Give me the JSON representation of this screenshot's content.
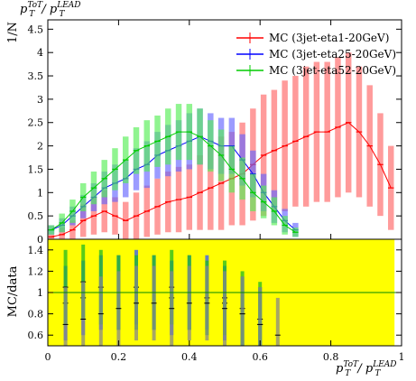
{
  "chart_data": [
    {
      "type": "line",
      "panel": "main",
      "title": "p_T^{ToT} / p_T^{LEAD}",
      "title_parts": {
        "base": "p",
        "sub": "T",
        "sup1": "ToT",
        "sep": " / ",
        "base2": "p",
        "sub2": "T",
        "sup2": "LEAD"
      },
      "ylabel": "1/N",
      "xlim": [
        0,
        1
      ],
      "ylim": [
        0,
        4.7
      ],
      "x_ticks": [
        0,
        0.2,
        0.4,
        0.6,
        0.8,
        1
      ],
      "y_ticks": [
        "0",
        "0.5",
        "1",
        "1.5",
        "2",
        "2.5",
        "3",
        "3.5",
        "4",
        "4.5"
      ],
      "y_tick_values": [
        0,
        0.5,
        1,
        1.5,
        2,
        2.5,
        3,
        3.5,
        4,
        4.5
      ],
      "legend_position": "top-right",
      "series": [
        {
          "name": "MC (3jet-eta1-20GeV)",
          "color": "#ff0000",
          "band_color": "#ff6666",
          "x": [
            0.01,
            0.04,
            0.07,
            0.1,
            0.13,
            0.16,
            0.19,
            0.22,
            0.25,
            0.28,
            0.31,
            0.34,
            0.37,
            0.4,
            0.43,
            0.46,
            0.49,
            0.52,
            0.55,
            0.58,
            0.61,
            0.64,
            0.67,
            0.7,
            0.73,
            0.76,
            0.79,
            0.82,
            0.85,
            0.88,
            0.91,
            0.94,
            0.97
          ],
          "y": [
            0.05,
            0.1,
            0.2,
            0.4,
            0.5,
            0.6,
            0.5,
            0.4,
            0.5,
            0.6,
            0.7,
            0.8,
            0.85,
            0.9,
            1.0,
            1.1,
            1.2,
            1.3,
            1.4,
            1.6,
            1.8,
            1.9,
            2.0,
            2.1,
            2.2,
            2.3,
            2.3,
            2.4,
            2.5,
            2.3,
            2.0,
            1.6,
            1.1
          ],
          "err": [
            0.05,
            0.15,
            0.2,
            0.35,
            0.4,
            0.45,
            0.4,
            0.4,
            0.5,
            0.55,
            0.6,
            0.65,
            0.7,
            0.7,
            0.8,
            0.9,
            1.0,
            1.0,
            1.1,
            1.2,
            1.3,
            1.3,
            1.4,
            1.4,
            1.5,
            1.5,
            1.5,
            1.5,
            1.5,
            1.4,
            1.3,
            1.1,
            0.9
          ]
        },
        {
          "name": "MC (3jet-eta25-20GeV)",
          "color": "#0000ff",
          "band_color": "#6666ff",
          "x": [
            0.01,
            0.04,
            0.07,
            0.1,
            0.13,
            0.16,
            0.19,
            0.22,
            0.25,
            0.28,
            0.31,
            0.34,
            0.37,
            0.4,
            0.43,
            0.46,
            0.49,
            0.52,
            0.55,
            0.58,
            0.61,
            0.64,
            0.67,
            0.7
          ],
          "y": [
            0.2,
            0.3,
            0.5,
            0.7,
            0.9,
            1.1,
            1.2,
            1.3,
            1.5,
            1.6,
            1.8,
            1.9,
            2.0,
            2.1,
            2.2,
            2.1,
            2.0,
            2.0,
            1.7,
            1.4,
            1.0,
            0.7,
            0.4,
            0.2
          ],
          "err": [
            0.1,
            0.15,
            0.2,
            0.25,
            0.3,
            0.35,
            0.4,
            0.4,
            0.45,
            0.5,
            0.5,
            0.55,
            0.55,
            0.6,
            0.6,
            0.6,
            0.6,
            0.6,
            0.55,
            0.5,
            0.4,
            0.35,
            0.25,
            0.15
          ]
        },
        {
          "name": "MC (3jet-eta52-20GeV)",
          "color": "#00cc00",
          "band_color": "#55ee55",
          "x": [
            0.01,
            0.04,
            0.07,
            0.1,
            0.13,
            0.16,
            0.19,
            0.22,
            0.25,
            0.28,
            0.31,
            0.34,
            0.37,
            0.4,
            0.43,
            0.46,
            0.49,
            0.52,
            0.55,
            0.58,
            0.61,
            0.64,
            0.67,
            0.7
          ],
          "y": [
            0.2,
            0.35,
            0.6,
            0.9,
            1.1,
            1.3,
            1.5,
            1.7,
            1.9,
            2.0,
            2.1,
            2.2,
            2.3,
            2.3,
            2.2,
            2.0,
            1.8,
            1.5,
            1.3,
            1.0,
            0.8,
            0.6,
            0.3,
            0.15
          ],
          "err": [
            0.1,
            0.2,
            0.25,
            0.3,
            0.35,
            0.4,
            0.45,
            0.5,
            0.5,
            0.55,
            0.55,
            0.6,
            0.6,
            0.6,
            0.6,
            0.55,
            0.55,
            0.5,
            0.45,
            0.4,
            0.35,
            0.3,
            0.2,
            0.1
          ]
        }
      ]
    },
    {
      "type": "line",
      "panel": "ratio",
      "ylabel": "MC/data",
      "xlabel": "p_T^{ToT} / p_T^{LEAD}",
      "xlabel_parts": {
        "base": "p",
        "sub": "T",
        "sup1": "ToT",
        "sep": " / ",
        "base2": "p",
        "sub2": "T",
        "sup2": "LEAD"
      },
      "xlim": [
        0,
        1
      ],
      "ylim": [
        0.5,
        1.5
      ],
      "x_ticks": [
        "0",
        "0.2",
        "0.4",
        "0.6",
        "0.8",
        "1"
      ],
      "x_tick_values": [
        0,
        0.2,
        0.4,
        0.6,
        0.8,
        1
      ],
      "y_ticks": [
        "0.6",
        "0.8",
        "1",
        "1.2",
        "1.4"
      ],
      "y_tick_values": [
        0.6,
        0.8,
        1,
        1.2,
        1.4
      ],
      "reference_line": 1,
      "data_band_color": "#ffff00",
      "data_band_xrange": [
        0.0,
        0.98
      ],
      "series": [
        {
          "name": "MC (3jet-eta25-20GeV)",
          "color": "#3355ff",
          "x": [
            0.05,
            0.1,
            0.15,
            0.2,
            0.25,
            0.3,
            0.35,
            0.4,
            0.45,
            0.5,
            0.55,
            0.6
          ],
          "y": [
            0.9,
            0.95,
            1.0,
            1.0,
            1.05,
            1.0,
            0.95,
            1.0,
            1.0,
            0.9,
            0.8,
            0.7
          ]
        },
        {
          "name": "MC (3jet-eta52-20GeV)",
          "color": "#22bb22",
          "x": [
            0.05,
            0.1,
            0.15,
            0.2,
            0.25,
            0.3,
            0.35,
            0.4,
            0.45,
            0.5,
            0.55,
            0.6
          ],
          "y": [
            1.05,
            1.1,
            1.05,
            1.0,
            1.0,
            1.0,
            1.05,
            1.0,
            0.95,
            0.95,
            0.85,
            0.75
          ]
        },
        {
          "name": "MC (3jet-eta1-20GeV)",
          "color": "#888888",
          "x": [
            0.05,
            0.1,
            0.15,
            0.2,
            0.25,
            0.3,
            0.35,
            0.4,
            0.45,
            0.5,
            0.55,
            0.6,
            0.65
          ],
          "y": [
            0.7,
            0.75,
            0.8,
            0.85,
            0.9,
            0.9,
            0.85,
            0.9,
            0.9,
            0.85,
            0.8,
            0.7,
            0.6
          ]
        }
      ]
    }
  ]
}
